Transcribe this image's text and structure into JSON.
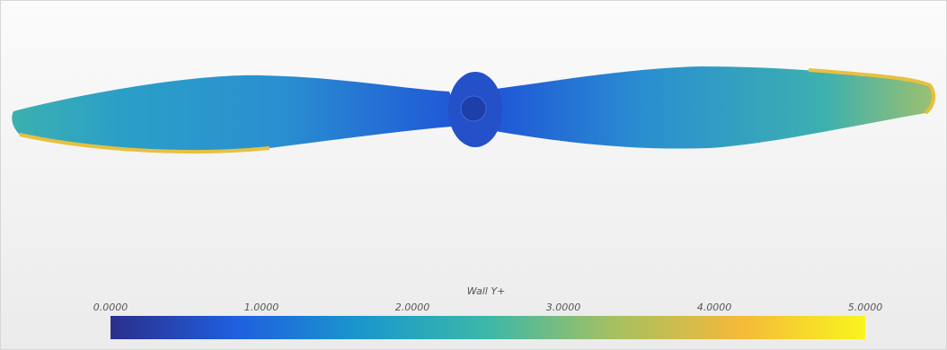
{
  "colorbar": {
    "title": "Wall Y+",
    "range": [
      0,
      5
    ],
    "ticks": [
      {
        "value": 0,
        "label": "0.0000"
      },
      {
        "value": 1,
        "label": "1.0000"
      },
      {
        "value": 2,
        "label": "2.0000"
      },
      {
        "value": 3,
        "label": "3.0000"
      },
      {
        "value": 4,
        "label": "4.0000"
      },
      {
        "value": 5,
        "label": "5.0000"
      }
    ],
    "colors": [
      "#2b2f8a",
      "#1f5fe0",
      "#1a98cc",
      "#3cb8a8",
      "#a6c061",
      "#f4b93a",
      "#f9f51e"
    ]
  }
}
